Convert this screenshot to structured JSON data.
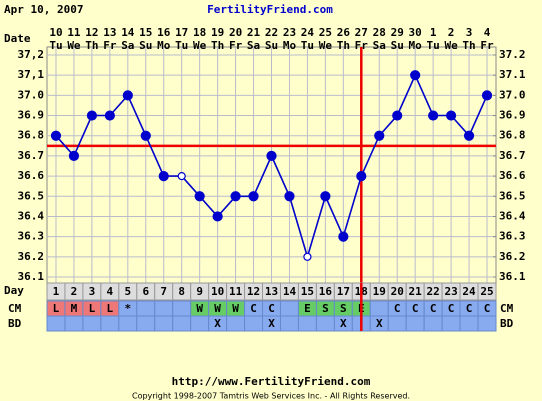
{
  "header": {
    "date": "Apr 10, 2007",
    "site": "FertilityFriend.com"
  },
  "chart_data": {
    "type": "line",
    "x_label": "Date",
    "categories": [
      "10",
      "11",
      "12",
      "13",
      "14",
      "15",
      "16",
      "17",
      "18",
      "19",
      "20",
      "21",
      "22",
      "23",
      "24",
      "25",
      "26",
      "27",
      "28",
      "29",
      "30",
      "1",
      "2",
      "3",
      "4"
    ],
    "weekdays": [
      "Tu",
      "We",
      "Th",
      "Fr",
      "Sa",
      "Su",
      "Mo",
      "Tu",
      "We",
      "Th",
      "Fr",
      "Sa",
      "Su",
      "Mo",
      "Tu",
      "We",
      "Th",
      "Fr",
      "Sa",
      "Su",
      "Mo",
      "Tu",
      "We",
      "Th",
      "Fr"
    ],
    "values": [
      36.8,
      36.7,
      36.9,
      36.9,
      37.0,
      36.8,
      36.6,
      36.6,
      36.5,
      36.4,
      36.5,
      36.5,
      36.7,
      36.5,
      36.2,
      36.5,
      36.3,
      36.6,
      36.8,
      36.9,
      37.1,
      36.9,
      36.9,
      36.8,
      37.0
    ],
    "open_markers": [
      false,
      false,
      false,
      false,
      false,
      false,
      false,
      true,
      false,
      false,
      false,
      false,
      false,
      false,
      true,
      false,
      false,
      false,
      false,
      false,
      false,
      false,
      false,
      false,
      false
    ],
    "color": "#0000cc",
    "ylim": [
      36.1,
      37.2
    ],
    "yticks": [
      36.1,
      36.2,
      36.3,
      36.4,
      36.5,
      36.6,
      36.7,
      36.8,
      36.9,
      {
        "value": 37.0,
        "label": "37.0"
      },
      {
        "value": 37.1,
        "label": "37,1"
      },
      {
        "value": 37.2,
        "label": "37,2"
      }
    ],
    "y2lim": [
      36.1,
      37.2
    ],
    "y2ticks": [
      36.1,
      36.2,
      36.3,
      36.4,
      36.5,
      36.6,
      36.7,
      36.8,
      36.9,
      {
        "value": 37.0,
        "label": "37.0"
      },
      37.1,
      37.2
    ],
    "grid": true,
    "coverline": 36.75,
    "ovulation_day": 18,
    "marker_line_color": "#ee0000",
    "day_label": "Day",
    "cycle_days": [
      1,
      2,
      3,
      4,
      5,
      6,
      7,
      8,
      9,
      10,
      11,
      12,
      13,
      14,
      15,
      16,
      17,
      18,
      19,
      20,
      21,
      22,
      23,
      24,
      25
    ],
    "cm_label": "CM",
    "cervical_mucus": [
      "L",
      "M",
      "L",
      "L",
      "*",
      null,
      null,
      null,
      "W",
      "W",
      "W",
      "C",
      "C",
      null,
      "E",
      "S",
      "S",
      "E",
      null,
      "C",
      "C",
      "C",
      "C",
      "C",
      "C"
    ],
    "cm_colors": [
      "#ee7777",
      "#ee7777",
      "#ee7777",
      "#ee7777",
      "#88aaee",
      "#88aaee",
      "#88aaee",
      "#88aaee",
      "#66cc66",
      "#66cc66",
      "#66cc66",
      "#88aaee",
      "#88aaee",
      "#88aaee",
      "#66cc66",
      "#66cc66",
      "#66cc66",
      "#66cc66",
      "#88aaee",
      "#88aaee",
      "#88aaee",
      "#88aaee",
      "#88aaee",
      "#88aaee",
      "#88aaee"
    ],
    "bd_label": "BD",
    "intercourse": [
      null,
      null,
      null,
      null,
      null,
      null,
      null,
      null,
      null,
      "X",
      null,
      null,
      "X",
      null,
      null,
      null,
      "X",
      null,
      "X",
      null,
      null,
      null,
      null,
      null,
      null
    ]
  },
  "footer": {
    "url": "http://www.FertilityFriend.com",
    "copyright": "Copyright 1998-2007 Tamtris Web Services Inc. - All Rights Reserved."
  }
}
